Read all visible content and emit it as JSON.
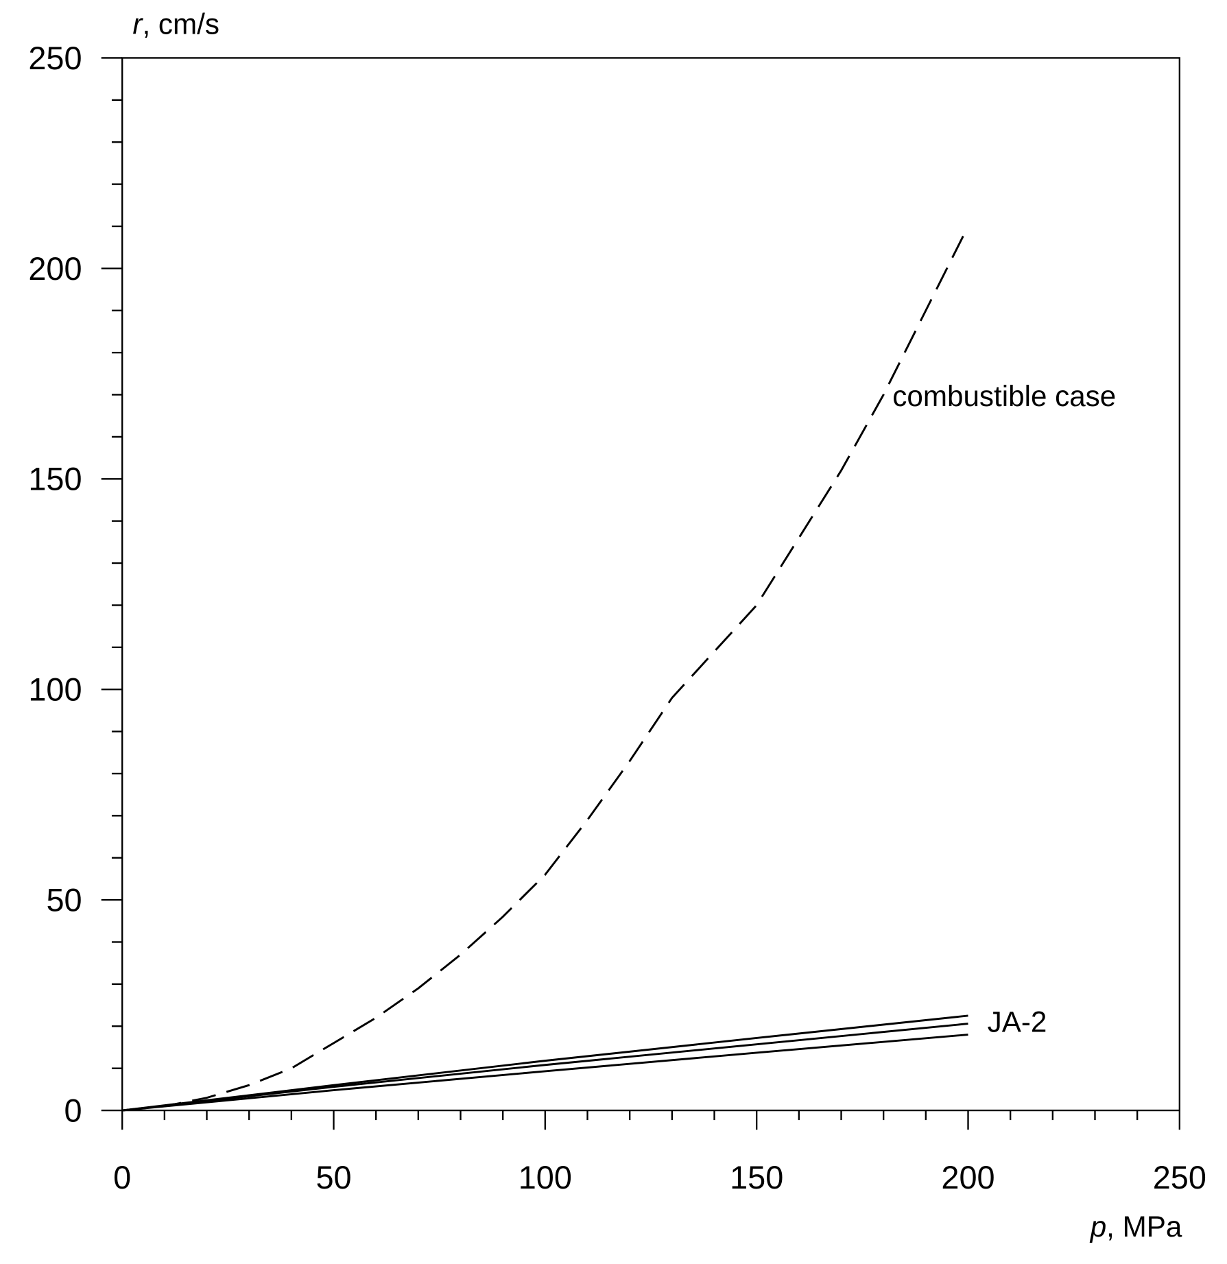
{
  "chart_data": {
    "type": "line",
    "ylabel": [
      "r",
      ", cm/s"
    ],
    "xlabel": [
      "p",
      ", MPa"
    ],
    "xlim": [
      0,
      250
    ],
    "ylim": [
      0,
      250
    ],
    "xticks": [
      0,
      50,
      100,
      150,
      200,
      250
    ],
    "yticks": [
      0,
      50,
      100,
      150,
      200,
      250
    ],
    "xminorticks": [
      10,
      20,
      30,
      40,
      60,
      70,
      80,
      90,
      110,
      120,
      130,
      140,
      160,
      170,
      180,
      190,
      210,
      220,
      230,
      240
    ],
    "yminorticks": [
      10,
      20,
      30,
      40,
      60,
      70,
      80,
      90,
      110,
      120,
      130,
      140,
      160,
      170,
      180,
      190,
      210,
      220,
      230,
      240
    ],
    "grid": false,
    "series": [
      {
        "name": "combustible case",
        "color": "#000000",
        "dashed": true,
        "x": [
          0,
          10,
          20,
          30,
          40,
          50,
          60,
          70,
          80,
          90,
          100,
          110,
          120,
          130,
          140,
          150,
          160,
          170,
          180,
          190,
          200
        ],
        "values": [
          0,
          1,
          3,
          6,
          10,
          16,
          22,
          29,
          37,
          46,
          56,
          69,
          83,
          98,
          109,
          120,
          136,
          152,
          170,
          190,
          210
        ]
      },
      {
        "name": "JA-2",
        "color": "#000000",
        "dashed": false,
        "x": [
          0,
          50,
          100,
          150,
          200
        ],
        "values": [
          0,
          6,
          11.8,
          17.2,
          22.5
        ]
      },
      {
        "color": "#000000",
        "dashed": false,
        "x": [
          0,
          50,
          100,
          150,
          200
        ],
        "values": [
          0,
          5.6,
          10.8,
          15.7,
          20.6
        ]
      },
      {
        "color": "#000000",
        "dashed": false,
        "x": [
          0,
          50,
          100,
          150,
          200
        ],
        "values": [
          0,
          4.8,
          9.3,
          13.7,
          18
        ]
      }
    ]
  }
}
